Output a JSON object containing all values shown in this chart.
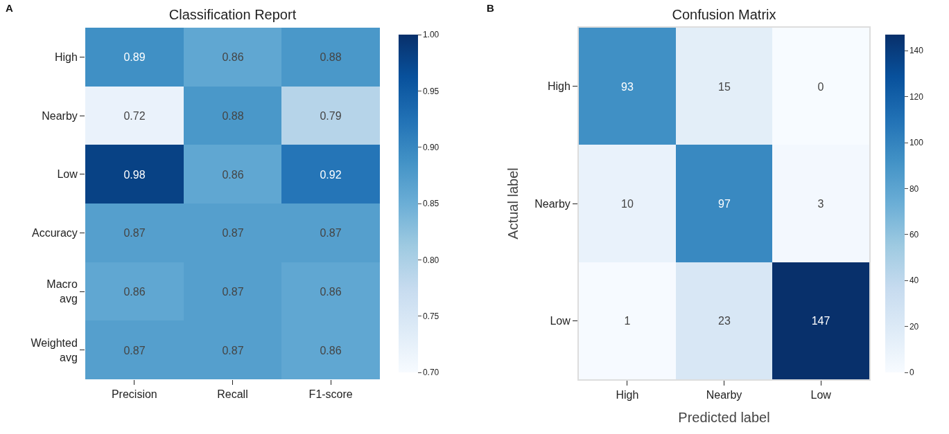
{
  "chart_data": [
    {
      "type": "heatmap",
      "title": "Classification Report",
      "annotations": [
        "A"
      ],
      "categories": [
        "Precision",
        "Recall",
        "F1-score"
      ],
      "y_categories": [
        "High",
        "Nearby",
        "Low",
        "Accuracy",
        "Macro\navg",
        "Weighted\navg"
      ],
      "cells": [
        [
          0.89,
          0.86,
          0.88
        ],
        [
          0.72,
          0.88,
          0.79
        ],
        [
          0.98,
          0.86,
          0.92
        ],
        [
          0.87,
          0.87,
          0.87
        ],
        [
          0.86,
          0.87,
          0.86
        ],
        [
          0.87,
          0.87,
          0.86
        ]
      ],
      "data_labels": true,
      "clim": [
        0.7,
        1.0
      ],
      "cticks": [
        {
          "value": 0.7,
          "label": "0.70"
        },
        {
          "value": 0.75,
          "label": "0.75"
        },
        {
          "value": 0.8,
          "label": "0.80"
        },
        0.85,
        {
          "value": 0.9,
          "label": "0.90"
        },
        0.95,
        {
          "value": 1.0,
          "label": "1.00"
        }
      ]
    },
    {
      "type": "heatmap",
      "title": "Confusion Matrix",
      "annotations": [
        "B"
      ],
      "xlabel": "Predicted label",
      "ylabel": "Actual label",
      "categories": [
        "High",
        "Nearby",
        "Low"
      ],
      "y_categories": [
        "High",
        "Nearby",
        "Low"
      ],
      "cells": [
        [
          93,
          15,
          0
        ],
        [
          10,
          97,
          3
        ],
        [
          1,
          23,
          147
        ]
      ],
      "data_labels": true,
      "clim": [
        0,
        147
      ],
      "cticks": [
        0,
        20,
        40,
        60,
        80,
        100,
        120,
        140
      ]
    }
  ]
}
